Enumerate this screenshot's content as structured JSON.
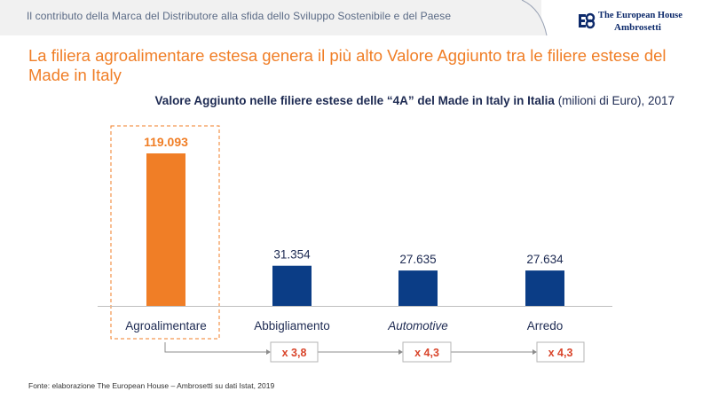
{
  "header": {
    "text": "Il contributo  della Marca del Distributore alla sfida dello Sviluppo Sostenibile e del Paese",
    "logo_line1": "The European House",
    "logo_line2": "Ambrosetti"
  },
  "slide": {
    "title": "La filiera agroalimentare estesa genera il più alto Valore Aggiunto tra le filiere estese del Made in Italy",
    "subtitle_bold": "Valore Aggiunto  nelle filiere estese delle “4A” del Made  in Italy in Italia",
    "subtitle_unit": " (milioni  di Euro), 2017"
  },
  "chart_data": {
    "type": "bar",
    "title": "Valore Aggiunto nelle filiere estese delle “4A” del Made in Italy in Italia (milioni di Euro), 2017",
    "categories": [
      "Agroalimentare",
      "Abbigliamento",
      "Automotive",
      "Arredo"
    ],
    "values": [
      119093,
      31354,
      27635,
      27634
    ],
    "value_labels": [
      "119.093",
      "31.354",
      "27.635",
      "27.634"
    ],
    "ylim": [
      0,
      119093
    ],
    "highlight_index": 0,
    "multipliers": [
      "x 3,8",
      "x 4,3",
      "x 4,3"
    ],
    "colors": {
      "highlight": "#f07e26",
      "default": "#0b3d86",
      "multiplier": "#d9452b",
      "label": "#1d2a52"
    }
  },
  "footnote": "Fonte: elaborazione The European House – Ambrosetti su dati Istat, 2019"
}
